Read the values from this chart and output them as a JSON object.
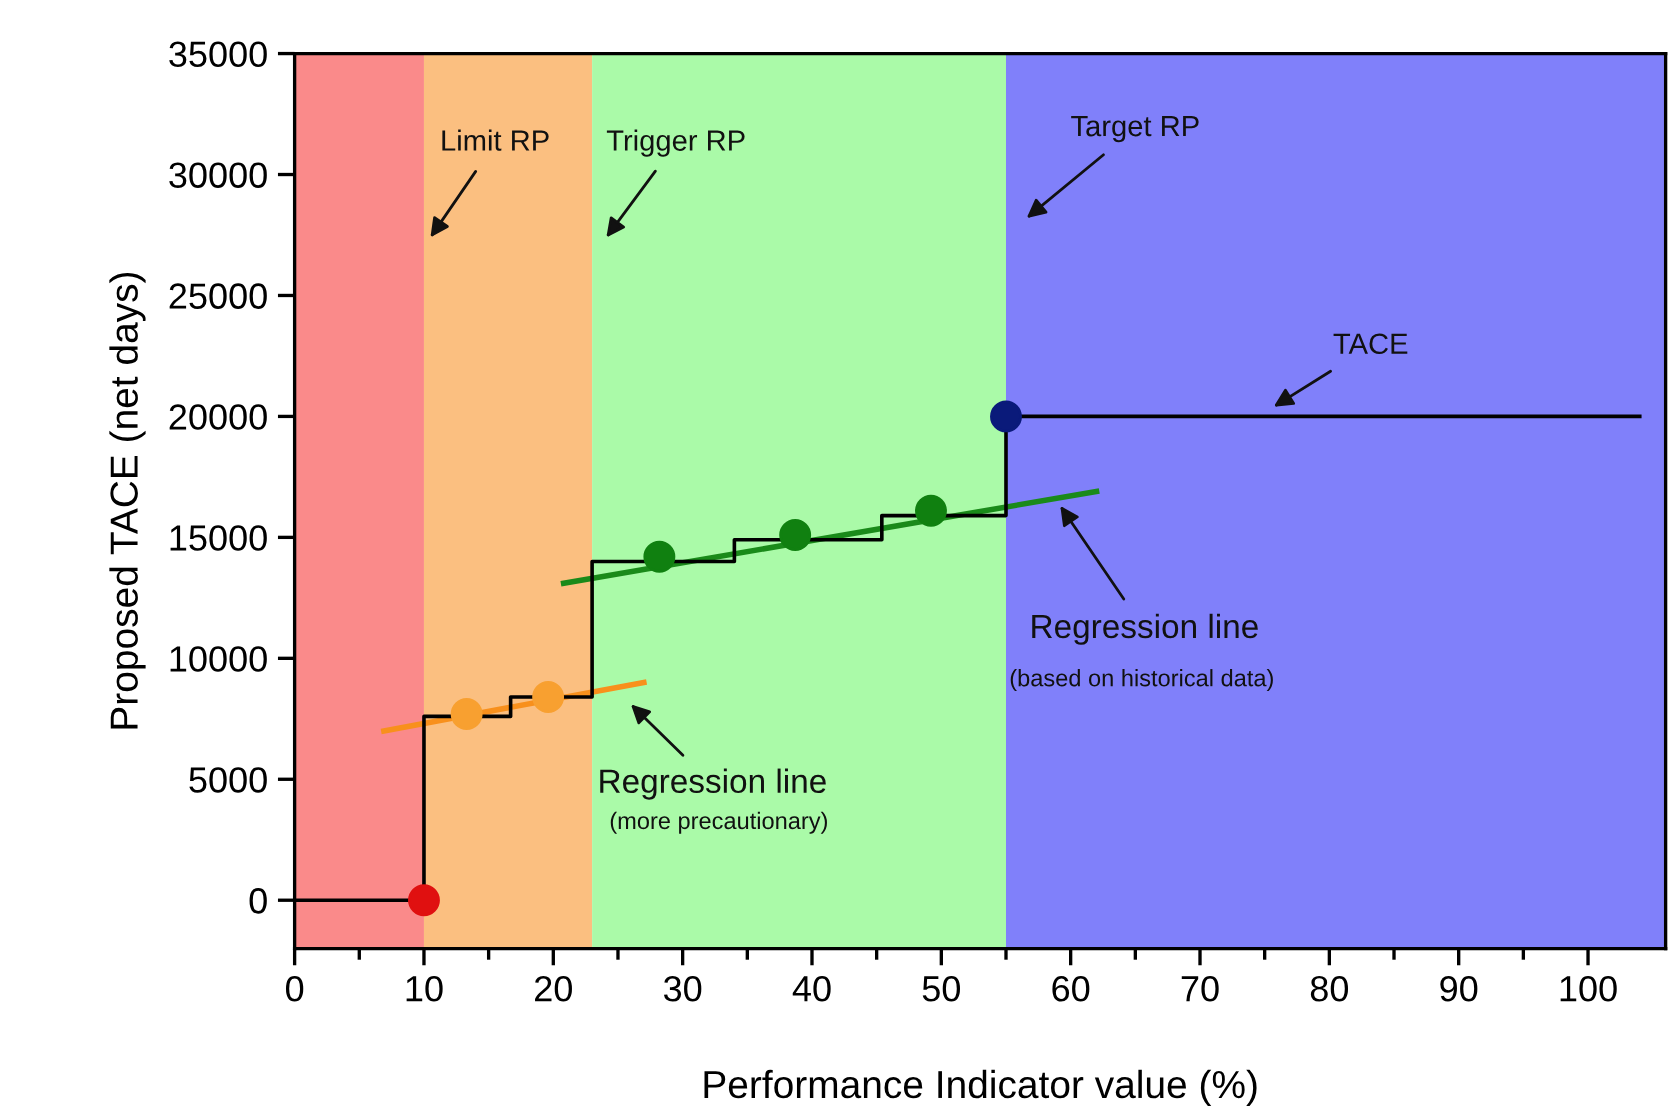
{
  "chart_data": {
    "type": "line",
    "xlabel": "Performance Indicator value (%)",
    "ylabel": "Proposed TACE (net days)",
    "xlim": [
      0,
      106
    ],
    "xticks": [
      0,
      10,
      20,
      30,
      40,
      50,
      60,
      70,
      80,
      90,
      100
    ],
    "ylim": [
      -2000,
      35000
    ],
    "yticks": [
      0,
      5000,
      10000,
      15000,
      20000,
      25000,
      30000,
      35000
    ],
    "grid": false,
    "legend": false,
    "bands": [
      {
        "axis": "x",
        "from": 0,
        "to": 10,
        "color": "#fa8a8a"
      },
      {
        "axis": "x",
        "from": 10,
        "to": 23,
        "color": "#fbbf80"
      },
      {
        "axis": "x",
        "from": 23,
        "to": 55,
        "color": "#aafaa8"
      },
      {
        "axis": "x",
        "from": 55,
        "to": 106,
        "color": "#8080fa"
      }
    ],
    "series": [
      {
        "color": "#f8901c",
        "x": [
          6.9,
          27.0
        ],
        "values": [
          7000,
          9000
        ],
        "marker": "none"
      },
      {
        "color": "#1a8a1a",
        "x": [
          20.8,
          62.0
        ],
        "values": [
          13100,
          16900
        ],
        "marker": "none"
      },
      {
        "type": "step",
        "color": "#000000",
        "x": [
          0,
          10,
          16.7,
          23,
          34,
          45.4,
          55,
          104
        ],
        "values": [
          0,
          7600,
          8400,
          14000,
          14900,
          15900,
          20000,
          20000
        ],
        "marker": "none"
      },
      {
        "type": "scatter",
        "color": "#e01010",
        "x": [
          10
        ],
        "values": [
          0
        ],
        "marker": "circle"
      },
      {
        "type": "scatter",
        "color": "#f8a030",
        "x": [
          13.3,
          19.6
        ],
        "values": [
          7700,
          8400
        ],
        "marker": "circle"
      },
      {
        "type": "scatter",
        "color": "#108010",
        "x": [
          28.2,
          38.7,
          49.2
        ],
        "values": [
          14200,
          15100,
          16100
        ],
        "marker": "circle"
      },
      {
        "type": "scatter",
        "color": "#0a1a7a",
        "x": [
          55
        ],
        "values": [
          20000
        ],
        "marker": "circle"
      }
    ],
    "annotations": [
      "Limit RP",
      "Trigger RP",
      "Target RP",
      "TACE",
      "Regression line",
      "(based on historical data)",
      "Regression line",
      "(more precautionary)"
    ]
  }
}
